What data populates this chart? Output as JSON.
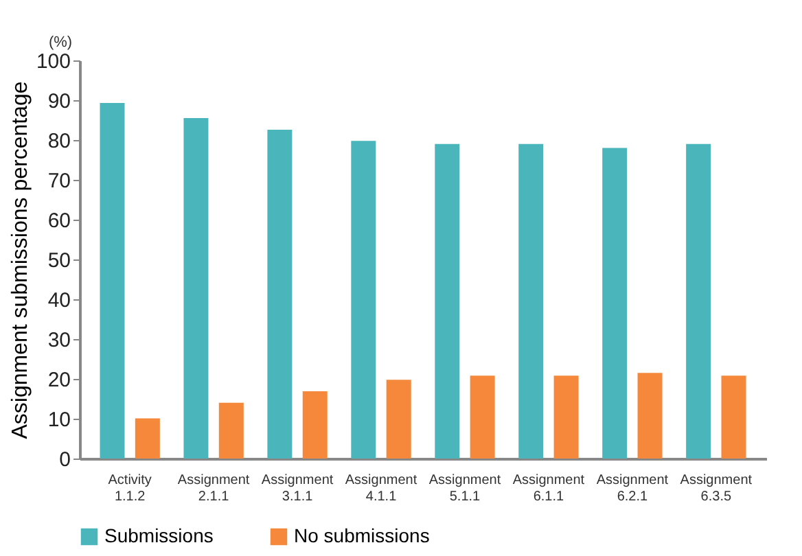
{
  "chart_data": {
    "type": "bar",
    "ylabel": "Assignment submissions percentage",
    "annotations": [
      "(%)"
    ],
    "categories": [
      "Activity 1.1.2",
      "Assignment 2.1.1",
      "Assignment 3.1.1",
      "Assignment 4.1.1",
      "Assignment 5.1.1",
      "Assignment 6.1.1",
      "Assignment 6.2.1",
      "Assignment 6.3.5"
    ],
    "series": [
      {
        "name": "Submissions",
        "color": "#4ab6bb",
        "values": [
          89.3,
          85.5,
          82.6,
          79.8,
          79,
          79,
          78,
          79
        ]
      },
      {
        "name": "No submissions",
        "color": "#f5883b",
        "values": [
          10.1,
          14,
          16.9,
          19.8,
          20.8,
          20.8,
          21.5,
          20.8
        ]
      }
    ],
    "ylim": [
      0,
      100
    ],
    "yticks": [
      0,
      10,
      20,
      30,
      40,
      50,
      60,
      70,
      80,
      90,
      100
    ],
    "grid": false,
    "legend": "bottom"
  }
}
